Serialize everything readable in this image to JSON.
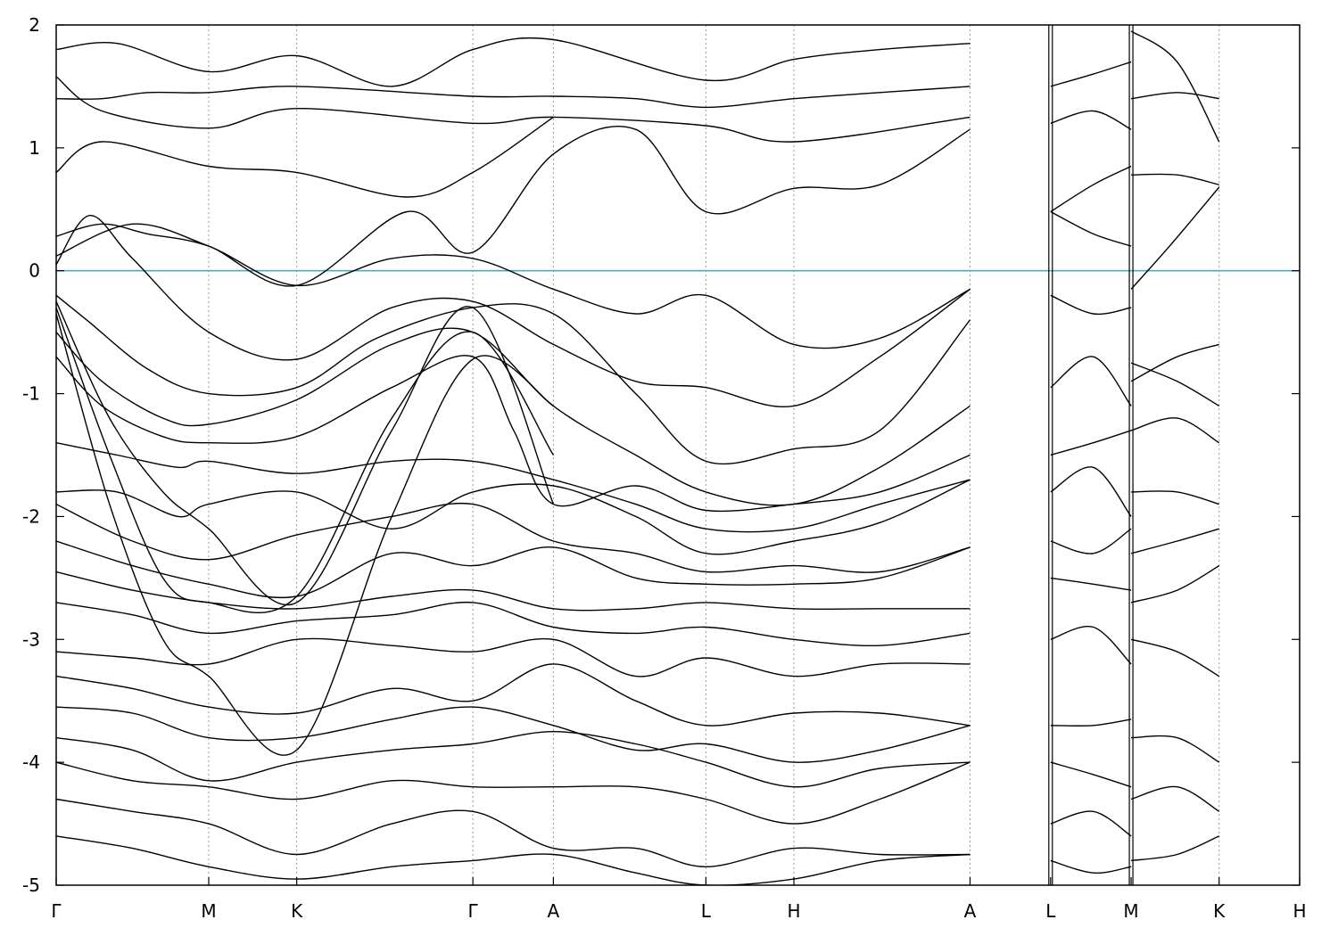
{
  "chart_data": {
    "type": "line",
    "title": "",
    "xlabel": "",
    "ylabel": "",
    "ylim": [
      -5,
      2
    ],
    "yticks": [
      2,
      1,
      0,
      -1,
      -2,
      -3,
      -4,
      -5
    ],
    "ytick_labels": [
      "2",
      "1",
      "0",
      "-1",
      "-2",
      "-3",
      "-4",
      "-5"
    ],
    "fermi_level": 0,
    "fermi_color": "#4fa9c4",
    "line_color": "#000000",
    "grid": "vertical dashed lines at high-symmetry points",
    "high_symmetry_points": [
      {
        "label": "Γ",
        "k": 0.0
      },
      {
        "label": "M",
        "k": 1.0
      },
      {
        "label": "K",
        "k": 1.577
      },
      {
        "label": "Γ",
        "k": 2.732
      },
      {
        "label": "A",
        "k": 3.26
      },
      {
        "label": "L",
        "k": 4.26
      },
      {
        "label": "H",
        "k": 4.837
      },
      {
        "label": "A",
        "k": 5.992
      },
      {
        "label": "L",
        "k": 6.52
      },
      {
        "label": "M",
        "k": 7.048
      },
      {
        "label": "K",
        "k": 7.625
      },
      {
        "label": "H",
        "k": 8.153
      }
    ],
    "segment_breaks": [
      6.52,
      7.048
    ],
    "series": [
      {
        "x": [
          0,
          0.5,
          1.0,
          1.577,
          2.2,
          2.732,
          3.26,
          3.8,
          4.26,
          4.837,
          5.4,
          5.992
        ],
        "y": [
          0.12,
          0.38,
          0.2,
          -0.12,
          0.1,
          0.1,
          -0.15,
          -0.35,
          -0.2,
          -0.6,
          -0.55,
          -0.15
        ]
      },
      {
        "x": [
          0,
          0.22,
          0.5,
          1.0,
          1.577,
          2.2,
          2.732,
          3.26,
          3.8,
          4.26,
          4.837,
          5.4,
          5.992
        ],
        "y": [
          0.05,
          0.45,
          0.1,
          -0.5,
          -0.72,
          -0.3,
          -0.25,
          -0.6,
          -0.9,
          -0.95,
          -1.1,
          -0.7,
          -0.15
        ]
      },
      {
        "x": [
          0,
          0.3,
          0.6,
          1.0,
          1.577,
          2.3,
          2.732,
          3.26,
          3.8,
          4.26,
          4.837,
          5.4,
          5.992
        ],
        "y": [
          0.28,
          0.38,
          0.3,
          0.2,
          -0.12,
          0.48,
          0.15,
          0.95,
          1.15,
          0.48,
          0.67,
          0.7,
          1.15
        ]
      },
      {
        "x": [
          0,
          0.3,
          1.0,
          1.577,
          2.3,
          2.732,
          3.26
        ],
        "y": [
          0.8,
          1.05,
          0.85,
          0.8,
          0.6,
          0.8,
          1.25
        ]
      },
      {
        "x": [
          0,
          0.3,
          0.6,
          1.0,
          1.577,
          2.732,
          3.26,
          3.8,
          4.26,
          4.837,
          5.4,
          5.992
        ],
        "y": [
          1.4,
          1.4,
          1.45,
          1.45,
          1.5,
          1.42,
          1.42,
          1.4,
          1.33,
          1.4,
          1.45,
          1.5
        ]
      },
      {
        "x": [
          0,
          0.4,
          1.0,
          1.577,
          2.2,
          2.732,
          3.26,
          4.26,
          4.837,
          5.4,
          5.992
        ],
        "y": [
          1.8,
          1.85,
          1.62,
          1.75,
          1.5,
          1.8,
          1.88,
          1.55,
          1.72,
          1.8,
          1.85
        ]
      },
      {
        "x": [
          0,
          0.3,
          1.0,
          1.577,
          2.732,
          3.26,
          4.26,
          4.837,
          5.992
        ],
        "y": [
          1.58,
          1.3,
          1.16,
          1.32,
          1.2,
          1.25,
          1.18,
          1.05,
          1.25
        ]
      },
      {
        "x": [
          0,
          0.2,
          0.6,
          1.0,
          1.577,
          2.1,
          2.732,
          3.26,
          3.8,
          4.26,
          4.837,
          5.4,
          5.992
        ],
        "y": [
          -0.2,
          -0.4,
          -0.8,
          -1.0,
          -0.95,
          -0.55,
          -0.3,
          -0.35,
          -1.0,
          -1.55,
          -1.45,
          -1.3,
          -0.4
        ]
      },
      {
        "x": [
          0,
          0.3,
          0.7,
          1.0,
          1.577,
          2.2,
          2.732,
          3.26,
          3.8,
          4.26,
          4.837,
          5.4,
          5.992
        ],
        "y": [
          -0.5,
          -0.9,
          -1.2,
          -1.25,
          -1.05,
          -0.6,
          -0.5,
          -1.1,
          -1.5,
          -1.8,
          -1.9,
          -1.6,
          -1.1
        ]
      },
      {
        "x": [
          0,
          0.3,
          0.7,
          1.0,
          1.577,
          2.2,
          2.732,
          3.0,
          3.26,
          3.8,
          4.26,
          4.837,
          5.4,
          5.992
        ],
        "y": [
          -0.7,
          -1.1,
          -1.35,
          -1.4,
          -1.35,
          -0.95,
          -0.7,
          -1.3,
          -1.9,
          -1.75,
          -1.95,
          -1.9,
          -1.8,
          -1.5
        ]
      },
      {
        "x": [
          0,
          0.4,
          0.8,
          1.0,
          1.577,
          2.2,
          2.732,
          3.26,
          3.8,
          4.26,
          4.837,
          5.4,
          5.992
        ],
        "y": [
          -1.4,
          -1.5,
          -1.6,
          -1.55,
          -1.65,
          -1.55,
          -1.55,
          -1.7,
          -1.9,
          -2.1,
          -2.1,
          -1.9,
          -1.7
        ]
      },
      {
        "x": [
          0,
          0.4,
          0.8,
          1.0,
          1.577,
          2.2,
          2.732,
          3.26,
          3.8,
          4.26,
          4.837,
          5.4,
          5.992
        ],
        "y": [
          -1.8,
          -1.8,
          -2.0,
          -1.9,
          -1.8,
          -2.1,
          -1.8,
          -1.75,
          -2.0,
          -2.3,
          -2.2,
          -2.05,
          -1.7
        ]
      },
      {
        "x": [
          0,
          0.5,
          1.0,
          1.577,
          2.2,
          2.732,
          3.26,
          3.8,
          4.26,
          4.837,
          5.4,
          5.992
        ],
        "y": [
          -1.9,
          -2.2,
          -2.35,
          -2.15,
          -2.0,
          -1.9,
          -2.2,
          -2.3,
          -2.45,
          -2.4,
          -2.45,
          -2.25
        ]
      },
      {
        "x": [
          0,
          0.5,
          1.0,
          1.577,
          2.2,
          2.732,
          3.26,
          3.8,
          4.26,
          4.837,
          5.4,
          5.992
        ],
        "y": [
          -2.2,
          -2.4,
          -2.55,
          -2.65,
          -2.3,
          -2.4,
          -2.25,
          -2.5,
          -2.55,
          -2.55,
          -2.5,
          -2.25
        ]
      },
      {
        "x": [
          0,
          0.5,
          1.0,
          1.577,
          2.2,
          2.732,
          3.26,
          3.8,
          4.26,
          4.837,
          5.4,
          5.992
        ],
        "y": [
          -2.45,
          -2.6,
          -2.7,
          -2.75,
          -2.65,
          -2.6,
          -2.75,
          -2.75,
          -2.7,
          -2.75,
          -2.75,
          -2.75
        ]
      },
      {
        "x": [
          0,
          0.5,
          1.0,
          1.577,
          2.2,
          2.732,
          3.26,
          3.8,
          4.26,
          4.837,
          5.4,
          5.992
        ],
        "y": [
          -2.7,
          -2.8,
          -2.95,
          -2.85,
          -2.8,
          -2.7,
          -2.9,
          -2.95,
          -2.9,
          -3.0,
          -3.05,
          -2.95
        ]
      },
      {
        "x": [
          0,
          0.5,
          1.0,
          1.577,
          2.2,
          2.732,
          3.26,
          3.8,
          4.26,
          4.837,
          5.4,
          5.992
        ],
        "y": [
          -3.1,
          -3.15,
          -3.2,
          -3.0,
          -3.05,
          -3.1,
          -3.0,
          -3.3,
          -3.15,
          -3.3,
          -3.2,
          -3.2
        ]
      },
      {
        "x": [
          0,
          0.5,
          1.0,
          1.577,
          2.2,
          2.732,
          3.26,
          3.8,
          4.26,
          4.837,
          5.4,
          5.992
        ],
        "y": [
          -3.3,
          -3.4,
          -3.55,
          -3.6,
          -3.4,
          -3.5,
          -3.2,
          -3.5,
          -3.7,
          -3.6,
          -3.6,
          -3.7
        ]
      },
      {
        "x": [
          0,
          0.5,
          1.0,
          1.577,
          2.2,
          2.732,
          3.26,
          3.8,
          4.26,
          4.837,
          5.4,
          5.992
        ],
        "y": [
          -3.55,
          -3.6,
          -3.8,
          -3.8,
          -3.65,
          -3.55,
          -3.7,
          -3.9,
          -3.85,
          -4.0,
          -3.9,
          -3.7
        ]
      },
      {
        "x": [
          0,
          0.5,
          1.0,
          1.577,
          2.2,
          2.732,
          3.26,
          3.8,
          4.26,
          4.837,
          5.4,
          5.992
        ],
        "y": [
          -3.8,
          -3.9,
          -4.15,
          -4.0,
          -3.9,
          -3.85,
          -3.75,
          -3.85,
          -4.0,
          -4.2,
          -4.05,
          -4.0
        ]
      },
      {
        "x": [
          0,
          0.5,
          1.0,
          1.577,
          2.2,
          2.732,
          3.26,
          3.8,
          4.26,
          4.837,
          5.4,
          5.992
        ],
        "y": [
          -4.0,
          -4.15,
          -4.2,
          -4.3,
          -4.15,
          -4.2,
          -4.2,
          -4.2,
          -4.3,
          -4.5,
          -4.3,
          -4.0
        ]
      },
      {
        "x": [
          0,
          0.5,
          1.0,
          1.577,
          2.2,
          2.732,
          3.26,
          3.8,
          4.26,
          4.837,
          5.4,
          5.992
        ],
        "y": [
          -4.3,
          -4.4,
          -4.5,
          -4.75,
          -4.5,
          -4.4,
          -4.7,
          -4.7,
          -4.85,
          -4.7,
          -4.75,
          -4.75
        ]
      },
      {
        "x": [
          0,
          0.5,
          1.0,
          1.577,
          2.2,
          2.732,
          3.26,
          3.8,
          4.26,
          4.837,
          5.4,
          5.992
        ],
        "y": [
          -4.6,
          -4.7,
          -4.85,
          -4.95,
          -4.85,
          -4.8,
          -4.75,
          -4.9,
          -5.0,
          -4.95,
          -4.8,
          -4.75
        ]
      },
      {
        "x": [
          0,
          0.35,
          0.7,
          1.0,
          1.577,
          2.2,
          2.732,
          3.26
        ],
        "y": [
          -0.25,
          -1.2,
          -1.8,
          -2.1,
          -2.7,
          -1.3,
          -0.3,
          -1.9
        ]
      },
      {
        "x": [
          0,
          0.35,
          0.7,
          1.0,
          1.577,
          2.2,
          2.732,
          3.26
        ],
        "y": [
          -0.3,
          -1.5,
          -2.5,
          -2.7,
          -2.65,
          -1.2,
          -0.5,
          -1.5
        ]
      },
      {
        "x": [
          0,
          0.35,
          0.7,
          1.0,
          1.577,
          2.2,
          2.732,
          3.26
        ],
        "y": [
          -0.35,
          -1.9,
          -3.0,
          -3.3,
          -3.9,
          -2.0,
          -0.72,
          -1.1
        ]
      },
      {
        "x": [
          6.52,
          6.8,
          7.048
        ],
        "y": [
          0.48,
          0.7,
          0.85
        ]
      },
      {
        "x": [
          6.52,
          6.8,
          7.048
        ],
        "y": [
          0.48,
          0.3,
          0.2
        ]
      },
      {
        "x": [
          6.52,
          6.8,
          7.048
        ],
        "y": [
          -0.2,
          -0.35,
          -0.3
        ]
      },
      {
        "x": [
          6.52,
          6.8,
          7.048
        ],
        "y": [
          -0.95,
          -0.7,
          -1.1
        ]
      },
      {
        "x": [
          6.52,
          6.8,
          7.048
        ],
        "y": [
          -1.5,
          -1.4,
          -1.3
        ]
      },
      {
        "x": [
          6.52,
          6.8,
          7.048
        ],
        "y": [
          -1.8,
          -1.6,
          -2.0
        ]
      },
      {
        "x": [
          6.52,
          6.8,
          7.048
        ],
        "y": [
          -2.2,
          -2.3,
          -2.1
        ]
      },
      {
        "x": [
          6.52,
          6.8,
          7.048
        ],
        "y": [
          -2.5,
          -2.55,
          -2.6
        ]
      },
      {
        "x": [
          6.52,
          6.8,
          7.048
        ],
        "y": [
          -3.0,
          -2.9,
          -3.2
        ]
      },
      {
        "x": [
          6.52,
          6.8,
          7.048
        ],
        "y": [
          -3.7,
          -3.7,
          -3.65
        ]
      },
      {
        "x": [
          6.52,
          6.8,
          7.048
        ],
        "y": [
          -4.0,
          -4.1,
          -4.2
        ]
      },
      {
        "x": [
          6.52,
          6.8,
          7.048
        ],
        "y": [
          -4.5,
          -4.4,
          -4.6
        ]
      },
      {
        "x": [
          6.52,
          6.8,
          7.048
        ],
        "y": [
          -4.8,
          -4.9,
          -4.85
        ]
      },
      {
        "x": [
          6.52,
          6.8,
          7.048
        ],
        "y": [
          1.5,
          1.6,
          1.7
        ]
      },
      {
        "x": [
          6.52,
          6.8,
          7.048
        ],
        "y": [
          1.2,
          1.3,
          1.15
        ]
      },
      {
        "x": [
          7.048,
          7.35,
          7.625
        ],
        "y": [
          0.78,
          0.78,
          0.7
        ]
      },
      {
        "x": [
          7.048,
          7.3,
          7.625
        ],
        "y": [
          -0.15,
          0.2,
          0.68
        ]
      },
      {
        "x": [
          7.048,
          7.35,
          7.625
        ],
        "y": [
          -0.9,
          -0.7,
          -0.6
        ]
      },
      {
        "x": [
          7.048,
          7.35,
          7.625
        ],
        "y": [
          -0.75,
          -0.9,
          -1.1
        ]
      },
      {
        "x": [
          7.048,
          7.35,
          7.625
        ],
        "y": [
          -1.3,
          -1.2,
          -1.4
        ]
      },
      {
        "x": [
          7.048,
          7.35,
          7.625
        ],
        "y": [
          -1.8,
          -1.8,
          -1.9
        ]
      },
      {
        "x": [
          7.048,
          7.35,
          7.625
        ],
        "y": [
          -2.3,
          -2.2,
          -2.1
        ]
      },
      {
        "x": [
          7.048,
          7.35,
          7.625
        ],
        "y": [
          -2.7,
          -2.6,
          -2.4
        ]
      },
      {
        "x": [
          7.048,
          7.35,
          7.625
        ],
        "y": [
          -3.0,
          -3.1,
          -3.3
        ]
      },
      {
        "x": [
          7.048,
          7.35,
          7.625
        ],
        "y": [
          -3.8,
          -3.8,
          -4.0
        ]
      },
      {
        "x": [
          7.048,
          7.35,
          7.625
        ],
        "y": [
          -4.3,
          -4.2,
          -4.4
        ]
      },
      {
        "x": [
          7.048,
          7.35,
          7.625
        ],
        "y": [
          -4.8,
          -4.75,
          -4.6
        ]
      },
      {
        "x": [
          7.048,
          7.35,
          7.625
        ],
        "y": [
          1.4,
          1.45,
          1.4
        ]
      },
      {
        "x": [
          7.048,
          7.35,
          7.625
        ],
        "y": [
          1.95,
          1.7,
          1.05
        ]
      }
    ]
  }
}
